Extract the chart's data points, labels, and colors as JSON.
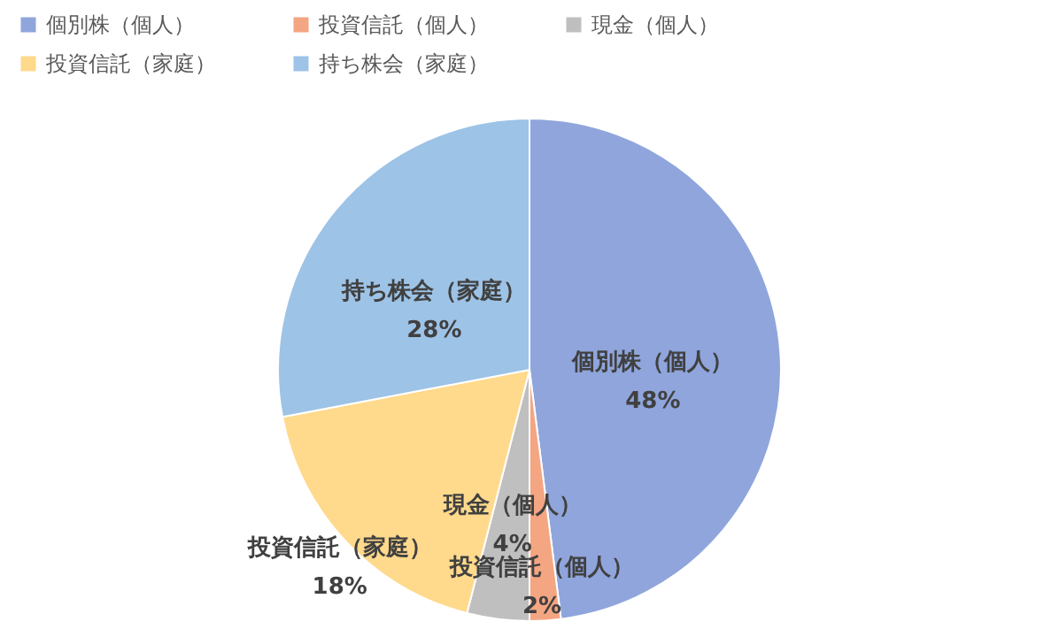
{
  "chart_data": {
    "type": "pie",
    "categories": [
      "個別株（個人）",
      "投資信託（個人）",
      "現金（個人）",
      "投資信託（家庭）",
      "持ち株会（家庭）"
    ],
    "values": [
      48,
      2,
      4,
      18,
      28
    ],
    "colors": [
      "#8fa5dc",
      "#f4a582",
      "#bfbfbf",
      "#ffd98c",
      "#9dc3e6"
    ],
    "value_labels": [
      "48%",
      "2%",
      "4%",
      "18%",
      "28%"
    ],
    "legend": "top left"
  }
}
